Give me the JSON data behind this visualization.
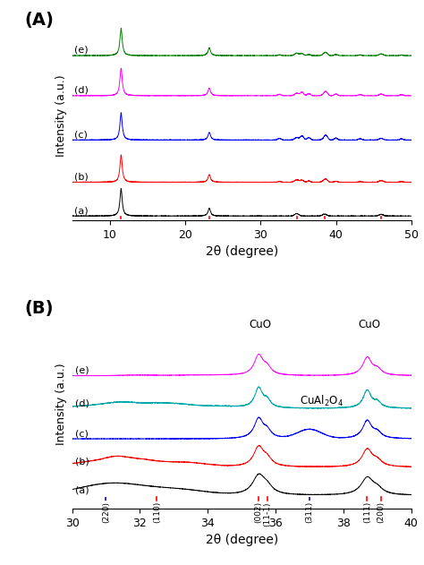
{
  "panel_A": {
    "xmin": 5,
    "xmax": 50,
    "colors": [
      "black",
      "red",
      "blue",
      "magenta",
      "green"
    ],
    "labels": [
      "(a)",
      "(b)",
      "(c)",
      "(d)",
      "(e)"
    ],
    "offsets": [
      0.0,
      0.16,
      0.36,
      0.57,
      0.76
    ],
    "ref_lines_red": [
      11.5,
      23.2,
      34.8,
      38.5,
      46.0
    ],
    "xlabel": "2θ (degree)",
    "ylabel": "Intensity (a.u.)",
    "panel_label": "(A)"
  },
  "panel_B": {
    "xmin": 30,
    "xmax": 40,
    "colors": [
      "black",
      "red",
      "blue",
      "#00AAAA",
      "magenta"
    ],
    "labels": [
      "(a)",
      "(b)",
      "(c)",
      "(d)",
      "(e)"
    ],
    "offsets": [
      0.0,
      0.13,
      0.26,
      0.4,
      0.55
    ],
    "xlabel": "2θ (degree)",
    "ylabel": "Intensity (a.u.)",
    "panel_label": "(B)",
    "tick_labels": [
      {
        "x": 31.0,
        "label": "(220)",
        "color": "blue",
        "style": "dashed"
      },
      {
        "x": 32.5,
        "label": "(110)",
        "color": "red",
        "style": "solid"
      },
      {
        "x": 35.5,
        "label": "(002)",
        "color": "red",
        "style": "solid"
      },
      {
        "x": 35.75,
        "label": "(11-1)",
        "color": "red",
        "style": "solid"
      },
      {
        "x": 37.0,
        "label": "(311)",
        "color": "blue",
        "style": "dashed"
      },
      {
        "x": 38.7,
        "label": "(111)",
        "color": "red",
        "style": "solid"
      },
      {
        "x": 39.1,
        "label": "(200)",
        "color": "red",
        "style": "solid"
      }
    ]
  }
}
